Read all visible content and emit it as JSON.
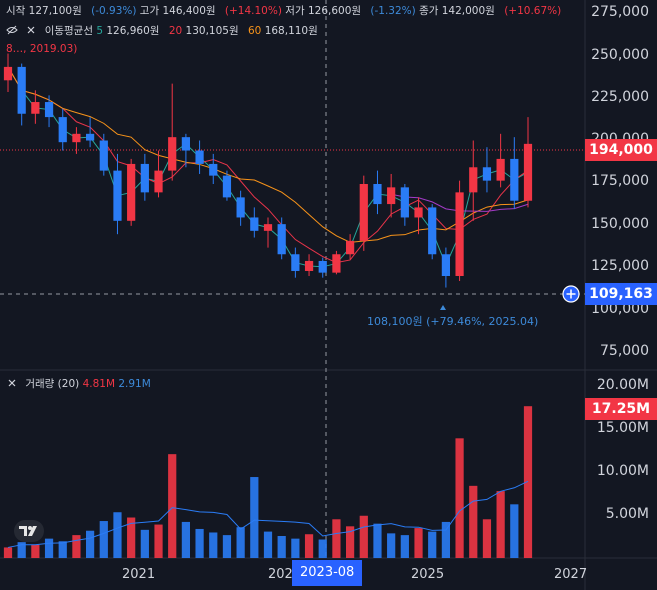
{
  "header": {
    "open_label": "시작",
    "open_value": "127,100원",
    "open_change": "(-0.93%)",
    "high_label": "고가",
    "high_value": "146,400원",
    "high_change": "(+14.10%)",
    "low_label": "저가",
    "low_value": "126,600원",
    "low_change": "(-1.32%)",
    "close_label": "종가",
    "close_value": "142,000원",
    "close_change": "(+10.67%)",
    "ma_label": "이동평균선",
    "ma5_period": "5",
    "ma5_value": "126,960원",
    "ma20_period": "20",
    "ma20_value": "130,105원",
    "ma60_period": "60",
    "ma60_value": "168,110원",
    "extra_note": "8…, 2019.03)"
  },
  "volume_header": {
    "label": "거래량 (20)",
    "v1": "4.81M",
    "v2": "2.91M"
  },
  "price_axis": [
    "275,000",
    "250,000",
    "225,000",
    "200,000",
    "175,000",
    "150,000",
    "125,000",
    "100,000",
    "75,000"
  ],
  "volume_axis": [
    "20.00M",
    "15.00M",
    "10.00M",
    "5.00M"
  ],
  "time_axis": [
    "2021",
    "202",
    "2025",
    "2027"
  ],
  "current_price_box": "194,000",
  "crosshair_price_box": "109,163",
  "crosshair_time_label": "2023-08",
  "low_annotation": "108,100원 (+79.46%, 2025.04)",
  "current_volume_box": "17.25M",
  "colors": {
    "up": "#f23645",
    "down": "#2a7cf6",
    "ma5": "#26a69a",
    "ma20": "#e8344a",
    "ma60": "#f7931a",
    "ma120": "#a33bc7",
    "background": "#131722",
    "crosshair_box": "#2962ff"
  },
  "chart_data": {
    "type": "candlestick",
    "price_range": [
      60000,
      280000
    ],
    "volume_range": [
      0,
      20000000
    ],
    "candles": [
      {
        "o": 232000,
        "h": 248000,
        "l": 225000,
        "c": 240000
      },
      {
        "o": 240000,
        "h": 242000,
        "l": 205000,
        "c": 212000
      },
      {
        "o": 212000,
        "h": 226000,
        "l": 206000,
        "c": 219000
      },
      {
        "o": 219000,
        "h": 223000,
        "l": 204000,
        "c": 210000
      },
      {
        "o": 210000,
        "h": 215000,
        "l": 190000,
        "c": 195000
      },
      {
        "o": 195000,
        "h": 204000,
        "l": 188000,
        "c": 200000
      },
      {
        "o": 200000,
        "h": 210000,
        "l": 192000,
        "c": 196000
      },
      {
        "o": 196000,
        "h": 200000,
        "l": 175000,
        "c": 178000
      },
      {
        "o": 178000,
        "h": 188000,
        "l": 140000,
        "c": 148000
      },
      {
        "o": 148000,
        "h": 185000,
        "l": 145000,
        "c": 182000
      },
      {
        "o": 182000,
        "h": 188000,
        "l": 160000,
        "c": 165000
      },
      {
        "o": 165000,
        "h": 190000,
        "l": 162000,
        "c": 178000
      },
      {
        "o": 178000,
        "h": 230000,
        "l": 172000,
        "c": 198000
      },
      {
        "o": 198000,
        "h": 200000,
        "l": 180000,
        "c": 190000
      },
      {
        "o": 190000,
        "h": 196000,
        "l": 176000,
        "c": 182000
      },
      {
        "o": 182000,
        "h": 188000,
        "l": 170000,
        "c": 175000
      },
      {
        "o": 175000,
        "h": 178000,
        "l": 160000,
        "c": 162000
      },
      {
        "o": 162000,
        "h": 166000,
        "l": 145000,
        "c": 150000
      },
      {
        "o": 150000,
        "h": 156000,
        "l": 138000,
        "c": 142000
      },
      {
        "o": 142000,
        "h": 150000,
        "l": 132000,
        "c": 146000
      },
      {
        "o": 146000,
        "h": 150000,
        "l": 125000,
        "c": 128000
      },
      {
        "o": 128000,
        "h": 132000,
        "l": 114000,
        "c": 118000
      },
      {
        "o": 118000,
        "h": 128000,
        "l": 115000,
        "c": 124000
      },
      {
        "o": 124000,
        "h": 126000,
        "l": 114000,
        "c": 117000
      },
      {
        "o": 117000,
        "h": 130000,
        "l": 116000,
        "c": 128000
      },
      {
        "o": 128000,
        "h": 140000,
        "l": 125000,
        "c": 136000
      },
      {
        "o": 136000,
        "h": 175000,
        "l": 130000,
        "c": 170000
      },
      {
        "o": 170000,
        "h": 178000,
        "l": 152000,
        "c": 158000
      },
      {
        "o": 158000,
        "h": 176000,
        "l": 150000,
        "c": 168000
      },
      {
        "o": 168000,
        "h": 170000,
        "l": 145000,
        "c": 150000
      },
      {
        "o": 150000,
        "h": 162000,
        "l": 140000,
        "c": 156000
      },
      {
        "o": 156000,
        "h": 158000,
        "l": 125000,
        "c": 128000
      },
      {
        "o": 128000,
        "h": 132000,
        "l": 108100,
        "c": 115000
      },
      {
        "o": 115000,
        "h": 172000,
        "l": 112000,
        "c": 165000
      },
      {
        "o": 165000,
        "h": 196000,
        "l": 148000,
        "c": 180000
      },
      {
        "o": 180000,
        "h": 192000,
        "l": 165000,
        "c": 172000
      },
      {
        "o": 172000,
        "h": 200000,
        "l": 168000,
        "c": 185000
      },
      {
        "o": 185000,
        "h": 198000,
        "l": 155000,
        "c": 160000
      },
      {
        "o": 160000,
        "h": 210000,
        "l": 156000,
        "c": 194000
      }
    ],
    "volumes": [
      {
        "v": 1200000,
        "up": true
      },
      {
        "v": 1800000,
        "up": false
      },
      {
        "v": 1500000,
        "up": true
      },
      {
        "v": 2200000,
        "up": false
      },
      {
        "v": 1900000,
        "up": false
      },
      {
        "v": 2600000,
        "up": true
      },
      {
        "v": 3100000,
        "up": false
      },
      {
        "v": 4200000,
        "up": false
      },
      {
        "v": 5200000,
        "up": false
      },
      {
        "v": 4600000,
        "up": true
      },
      {
        "v": 3200000,
        "up": false
      },
      {
        "v": 3800000,
        "up": true
      },
      {
        "v": 11800000,
        "up": true
      },
      {
        "v": 4100000,
        "up": false
      },
      {
        "v": 3300000,
        "up": false
      },
      {
        "v": 2900000,
        "up": false
      },
      {
        "v": 2600000,
        "up": false
      },
      {
        "v": 3500000,
        "up": false
      },
      {
        "v": 9200000,
        "up": false
      },
      {
        "v": 3000000,
        "up": false
      },
      {
        "v": 2500000,
        "up": false
      },
      {
        "v": 2200000,
        "up": false
      },
      {
        "v": 2700000,
        "up": true
      },
      {
        "v": 2100000,
        "up": false
      },
      {
        "v": 4400000,
        "up": true
      },
      {
        "v": 3600000,
        "up": true
      },
      {
        "v": 4800000,
        "up": true
      },
      {
        "v": 3900000,
        "up": false
      },
      {
        "v": 2800000,
        "up": false
      },
      {
        "v": 2600000,
        "up": false
      },
      {
        "v": 3400000,
        "up": true
      },
      {
        "v": 3000000,
        "up": false
      },
      {
        "v": 4100000,
        "up": false
      },
      {
        "v": 13600000,
        "up": true
      },
      {
        "v": 8200000,
        "up": true
      },
      {
        "v": 4400000,
        "up": true
      },
      {
        "v": 7600000,
        "up": true
      },
      {
        "v": 6100000,
        "up": false
      },
      {
        "v": 17250000,
        "up": true
      }
    ]
  }
}
